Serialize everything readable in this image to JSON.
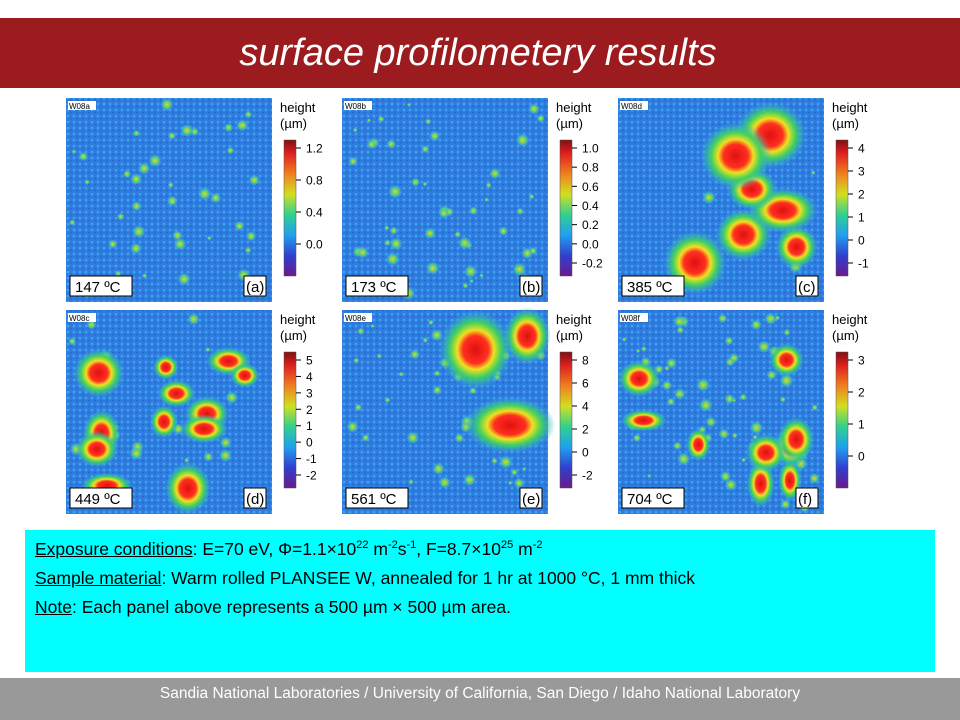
{
  "title": "surface profilometery results",
  "panels": [
    {
      "id": "W08a",
      "temperature": "147 ºC",
      "letter": "(a)",
      "height_label": "height",
      "unit_label": "(µm)",
      "ticks": [
        "1.2",
        "0.8",
        "0.4",
        "0.0"
      ]
    },
    {
      "id": "W08b",
      "temperature": "173 ºC",
      "letter": "(b)",
      "height_label": "height",
      "unit_label": "(µm)",
      "ticks": [
        "1.0",
        "0.8",
        "0.6",
        "0.4",
        "0.2",
        "0.0",
        "-0.2"
      ]
    },
    {
      "id": "W08d",
      "temperature": "385 ºC",
      "letter": "(c)",
      "height_label": "height",
      "unit_label": "(µm)",
      "ticks": [
        "4",
        "3",
        "2",
        "1",
        "0",
        "-1"
      ]
    },
    {
      "id": "W08c",
      "temperature": "449 ºC",
      "letter": "(d)",
      "height_label": "height",
      "unit_label": "(µm)",
      "ticks": [
        "5",
        "4",
        "3",
        "2",
        "1",
        "0",
        "-1",
        "-2"
      ]
    },
    {
      "id": "W08e",
      "temperature": "561 ºC",
      "letter": "(e)",
      "height_label": "height",
      "unit_label": "(µm)",
      "ticks": [
        "8",
        "6",
        "4",
        "2",
        "0",
        "-2"
      ]
    },
    {
      "id": "W08f",
      "temperature": "704 ºC",
      "letter": "(f)",
      "height_label": "height",
      "unit_label": "(µm)",
      "ticks": [
        "3",
        "2",
        "1",
        "0"
      ]
    }
  ],
  "notes": [
    {
      "label": "Exposure conditions",
      "parts": [
        ": E=70 eV, Φ=1.1×10",
        "22",
        " m",
        "-2",
        "s",
        "-1",
        ", F=8.7×10",
        "25",
        " m",
        "-2"
      ]
    },
    {
      "label": "Sample material",
      "parts": [
        ": Warm rolled PLANSEE W, annealed for 1 hr at 1000 °C, 1 mm thick"
      ]
    },
    {
      "label": "Note",
      "parts": [
        ": Each panel above represents a 500 µm × 500 µm area."
      ]
    }
  ],
  "footer": "Sandia National Laboratories / University of California, San Diego / Idaho National Laboratory"
}
